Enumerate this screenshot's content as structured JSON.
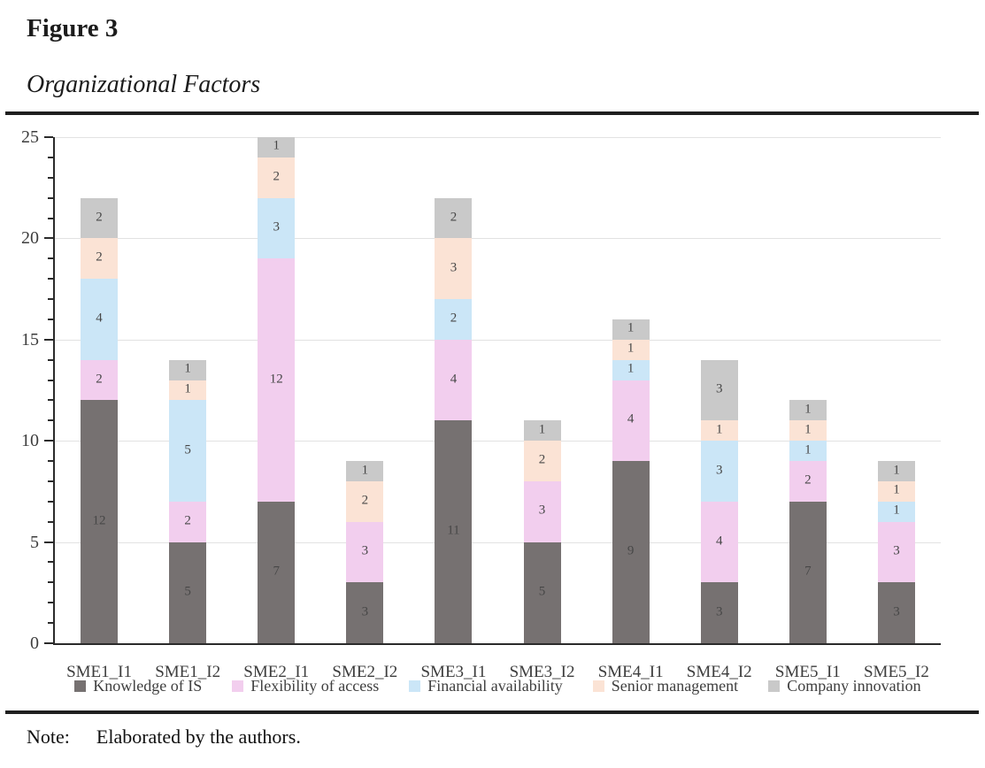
{
  "figure": {
    "label": "Figure 3",
    "title": "Organizational Factors"
  },
  "note": {
    "label": "Note:",
    "text": "Elaborated by the authors."
  },
  "chart_data": {
    "type": "bar",
    "stacked": true,
    "title": "",
    "xlabel": "",
    "ylabel": "",
    "categories": [
      "SME1_I1",
      "SME1_I2",
      "SME2_I1",
      "SME2_I2",
      "SME3_I1",
      "SME3_I2",
      "SME4_I1",
      "SME4_I2",
      "SME5_I1",
      "SME5_I2"
    ],
    "series": [
      {
        "name": "Knowledge of IS",
        "color": "#767171",
        "values": [
          12,
          5,
          7,
          3,
          11,
          5,
          9,
          3,
          7,
          3
        ]
      },
      {
        "name": "Flexibility of access",
        "color": "#f2ceee",
        "values": [
          2,
          2,
          12,
          3,
          4,
          3,
          4,
          4,
          2,
          3
        ]
      },
      {
        "name": "Financial availability",
        "color": "#cbe6f7",
        "values": [
          4,
          5,
          3,
          0,
          2,
          0,
          1,
          3,
          1,
          1
        ]
      },
      {
        "name": "Senior management",
        "color": "#fbe3d5",
        "values": [
          2,
          1,
          2,
          2,
          3,
          2,
          1,
          1,
          1,
          1
        ]
      },
      {
        "name": "Company innovation",
        "color": "#c9c9c9",
        "values": [
          2,
          1,
          1,
          1,
          2,
          1,
          1,
          3,
          1,
          1
        ]
      }
    ],
    "totals": [
      22,
      14,
      25,
      9,
      22,
      11,
      16,
      14,
      12,
      9
    ],
    "ylim": [
      0,
      25
    ],
    "yticks": [
      0,
      5,
      10,
      15,
      20,
      25
    ],
    "minor_tick_step": 1,
    "grid": true,
    "legend_position": "bottom",
    "bar_label_color": "#474747",
    "axis_color": "#2b2b2b",
    "gridline_color": "#e2e2e2"
  }
}
